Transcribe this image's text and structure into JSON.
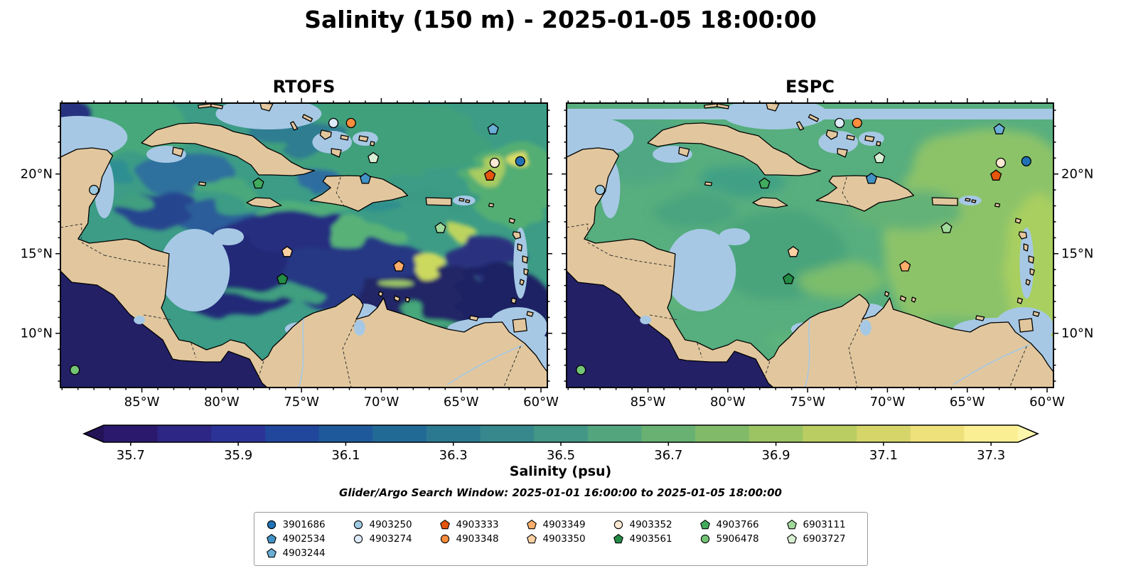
{
  "title": "Salinity (150 m) - 2025-01-05 18:00:00",
  "chart_data": {
    "type": "heatmap",
    "subtype": "geographic salinity field comparison, two panels",
    "panels": [
      {
        "name": "RTOFS"
      },
      {
        "name": "ESPC"
      }
    ],
    "map_extent": {
      "lon": [
        -90.1,
        -59.6
      ],
      "lat": [
        6.6,
        24.45
      ]
    },
    "lon_ticks": {
      "values": [
        -85,
        -80,
        -75,
        -70,
        -65,
        -60
      ],
      "labels": [
        "85°W",
        "80°W",
        "75°W",
        "70°W",
        "65°W",
        "60°W"
      ]
    },
    "lat_ticks": {
      "values": [
        20,
        15,
        10
      ],
      "labels": [
        "20°N",
        "15°N",
        "10°N"
      ]
    },
    "colorbar": {
      "label": "Salinity (psu)",
      "range": [
        35.65,
        37.35
      ],
      "tick_values": [
        35.7,
        35.9,
        36.1,
        36.3,
        36.5,
        36.7,
        36.9,
        37.1,
        37.3
      ],
      "tick_labels": [
        "35.7",
        "35.9",
        "36.1",
        "36.3",
        "36.5",
        "36.7",
        "36.9",
        "37.1",
        "37.3"
      ],
      "extend": "both",
      "segment_colors": [
        "#2a196d",
        "#2d2684",
        "#2b3496",
        "#21479d",
        "#1e5a9b",
        "#226a96",
        "#2b7991",
        "#36888c",
        "#439786",
        "#53a57d",
        "#68b173",
        "#81bb69",
        "#9cc463",
        "#b9cd62",
        "#d5d569",
        "#eee07a",
        "#fbef93"
      ],
      "arrow_low_color": "#241257",
      "arrow_high_color": "#fdf7ad"
    },
    "search_window": "Glider/Argo Search Window: 2025-01-01 16:00:00 to 2025-01-05 18:00:00",
    "style": {
      "land": "#e2c79e",
      "shallow_water": "#a6c8e4"
    },
    "floats": [
      {
        "wmo": "3901686",
        "shape": "circle",
        "color": "#2171b5",
        "lon": -61.3,
        "lat": 20.8
      },
      {
        "wmo": "4902534",
        "shape": "pentagon",
        "color": "#4292c6",
        "lon": -71.0,
        "lat": 19.7
      },
      {
        "wmo": "4903244",
        "shape": "pentagon",
        "color": "#6baed6",
        "lon": -63.0,
        "lat": 22.8
      },
      {
        "wmo": "4903250",
        "shape": "circle",
        "color": "#9ecae1",
        "lon": -88.0,
        "lat": 19.0
      },
      {
        "wmo": "4903274",
        "shape": "circle",
        "color": "#ddeaf7",
        "lon": -73.0,
        "lat": 23.2
      },
      {
        "wmo": "4903333",
        "shape": "pentagon",
        "color": "#e6550d",
        "lon": -63.2,
        "lat": 19.9
      },
      {
        "wmo": "4903348",
        "shape": "circle",
        "color": "#fd8d3c",
        "lon": -71.9,
        "lat": 23.2
      },
      {
        "wmo": "4903349",
        "shape": "pentagon",
        "color": "#fdae6b",
        "lon": -68.9,
        "lat": 14.2
      },
      {
        "wmo": "4903350",
        "shape": "pentagon",
        "color": "#fdd0a2",
        "lon": -75.9,
        "lat": 15.1
      },
      {
        "wmo": "4903352",
        "shape": "circle",
        "color": "#fee9d4",
        "lon": -62.9,
        "lat": 20.7
      },
      {
        "wmo": "4903561",
        "shape": "pentagon",
        "color": "#238b45",
        "lon": -76.2,
        "lat": 13.4
      },
      {
        "wmo": "4903766",
        "shape": "pentagon",
        "color": "#41ab5d",
        "lon": -77.7,
        "lat": 19.4
      },
      {
        "wmo": "5906478",
        "shape": "circle",
        "color": "#74c476",
        "lon": -89.2,
        "lat": 7.7
      },
      {
        "wmo": "6903111",
        "shape": "pentagon",
        "color": "#a1d99b",
        "lon": -66.3,
        "lat": 16.6
      },
      {
        "wmo": "6903727",
        "shape": "pentagon",
        "color": "#d9efd3",
        "lon": -70.5,
        "lat": 21.0
      }
    ]
  }
}
